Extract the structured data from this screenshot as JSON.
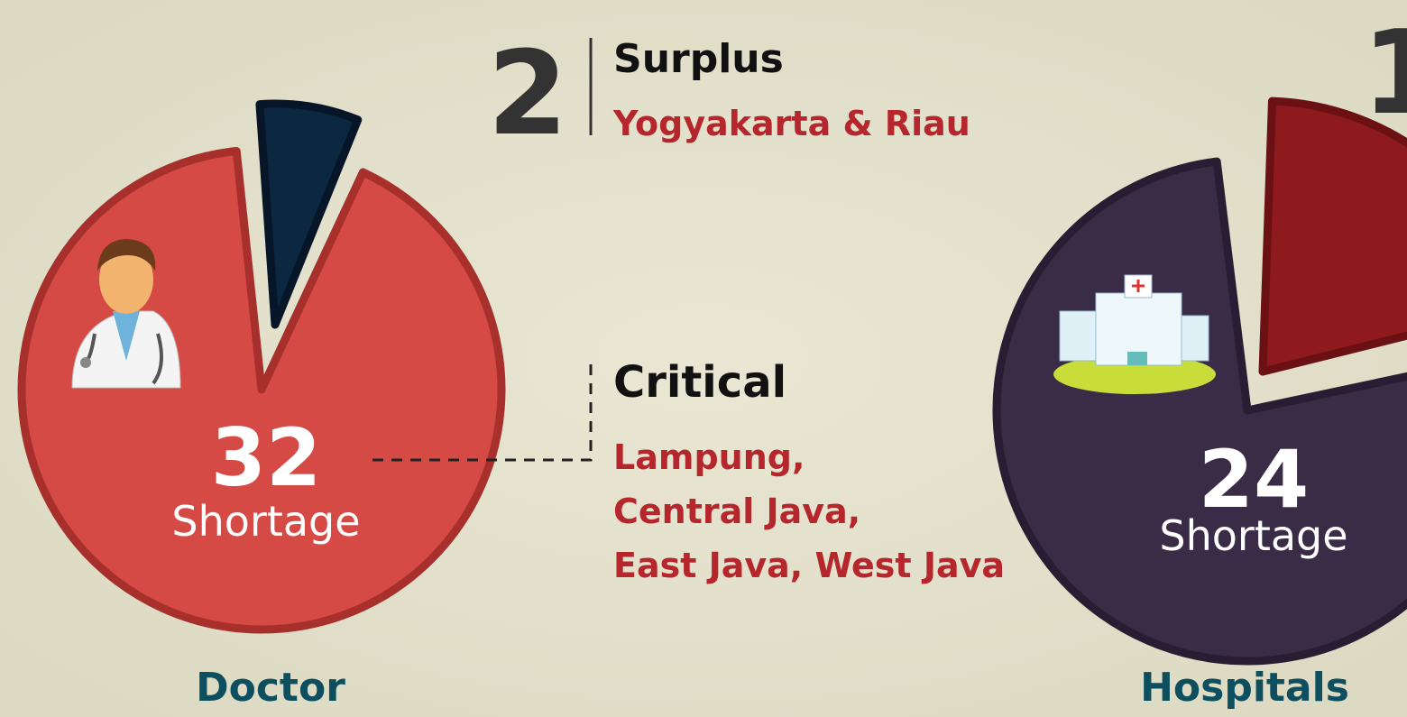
{
  "surplus": {
    "number": 2,
    "title": "Surplus",
    "regions": "Yogyakarta & Riau"
  },
  "critical": {
    "title": "Critical",
    "regions": [
      "Lampung,",
      "Central Java,",
      "East Java, West Java"
    ]
  },
  "doctor": {
    "number": 32,
    "label": "Shortage",
    "title": "Doctor"
  },
  "hospitals": {
    "number": 24,
    "label": "Shortage",
    "title": "Hospitals",
    "corner_number": 1
  }
}
